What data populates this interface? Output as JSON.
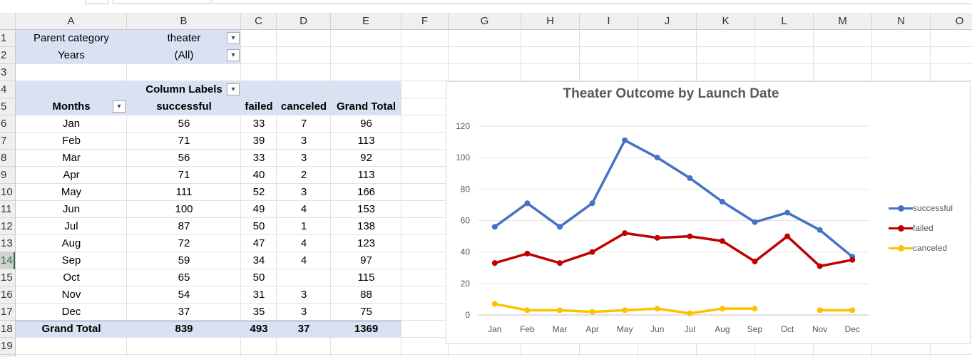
{
  "columns": [
    "A",
    "B",
    "C",
    "D",
    "E",
    "F",
    "G",
    "H",
    "I",
    "J",
    "K",
    "L",
    "M",
    "N",
    "O"
  ],
  "rows": [
    "1",
    "2",
    "3",
    "4",
    "5",
    "6",
    "7",
    "8",
    "9",
    "10",
    "11",
    "12",
    "13",
    "14",
    "15",
    "16",
    "17",
    "18",
    "19"
  ],
  "selected_row": "14",
  "filters": {
    "parent_label": "Parent category",
    "parent_value": "theater",
    "years_label": "Years",
    "years_value": "(All)"
  },
  "pivot": {
    "column_labels": "Column Labels",
    "row_header": "Months",
    "headers": [
      "successful",
      "failed",
      "canceled",
      "Grand Total"
    ],
    "rows": [
      {
        "month": "Jan",
        "successful": "56",
        "failed": "33",
        "canceled": "7",
        "total": "96"
      },
      {
        "month": "Feb",
        "successful": "71",
        "failed": "39",
        "canceled": "3",
        "total": "113"
      },
      {
        "month": "Mar",
        "successful": "56",
        "failed": "33",
        "canceled": "3",
        "total": "92"
      },
      {
        "month": "Apr",
        "successful": "71",
        "failed": "40",
        "canceled": "2",
        "total": "113"
      },
      {
        "month": "May",
        "successful": "111",
        "failed": "52",
        "canceled": "3",
        "total": "166"
      },
      {
        "month": "Jun",
        "successful": "100",
        "failed": "49",
        "canceled": "4",
        "total": "153"
      },
      {
        "month": "Jul",
        "successful": "87",
        "failed": "50",
        "canceled": "1",
        "total": "138"
      },
      {
        "month": "Aug",
        "successful": "72",
        "failed": "47",
        "canceled": "4",
        "total": "123"
      },
      {
        "month": "Sep",
        "successful": "59",
        "failed": "34",
        "canceled": "4",
        "total": "97"
      },
      {
        "month": "Oct",
        "successful": "65",
        "failed": "50",
        "canceled": "",
        "total": "115"
      },
      {
        "month": "Nov",
        "successful": "54",
        "failed": "31",
        "canceled": "3",
        "total": "88"
      },
      {
        "month": "Dec",
        "successful": "37",
        "failed": "35",
        "canceled": "3",
        "total": "75"
      }
    ],
    "grand_total": {
      "label": "Grand Total",
      "successful": "839",
      "failed": "493",
      "canceled": "37",
      "total": "1369"
    }
  },
  "colors": {
    "successful": "#4472c4",
    "failed": "#c00000",
    "canceled": "#ffc000",
    "pivot_header_bg": "#d9e1f2",
    "selection": "#217346"
  },
  "chart_data": {
    "type": "line",
    "title": "Theater Outcome by Launch Date",
    "categories": [
      "Jan",
      "Feb",
      "Mar",
      "Apr",
      "May",
      "Jun",
      "Jul",
      "Aug",
      "Sep",
      "Oct",
      "Nov",
      "Dec"
    ],
    "series": [
      {
        "name": "successful",
        "color": "#4472c4",
        "values": [
          56,
          71,
          56,
          71,
          111,
          100,
          87,
          72,
          59,
          65,
          54,
          37
        ]
      },
      {
        "name": "failed",
        "color": "#c00000",
        "values": [
          33,
          39,
          33,
          40,
          52,
          49,
          50,
          47,
          34,
          50,
          31,
          35
        ]
      },
      {
        "name": "canceled",
        "color": "#ffc000",
        "values": [
          7,
          3,
          3,
          2,
          3,
          4,
          1,
          4,
          4,
          null,
          3,
          3
        ]
      }
    ],
    "ylim": [
      0,
      120
    ],
    "yticks": [
      0,
      20,
      40,
      60,
      80,
      100,
      120
    ],
    "grid": true,
    "legend": "right"
  }
}
